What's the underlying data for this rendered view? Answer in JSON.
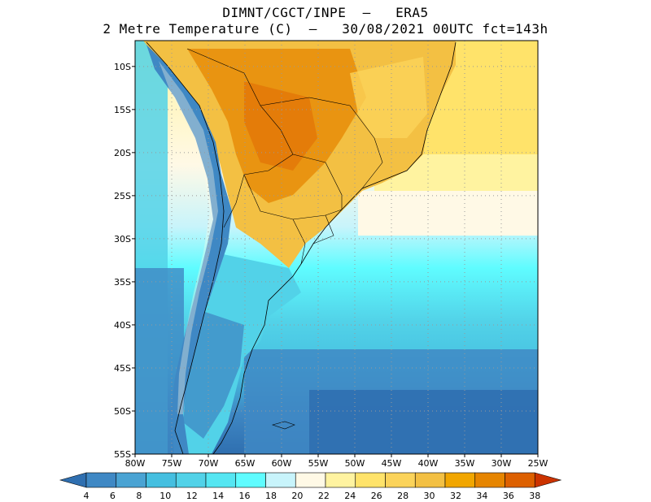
{
  "title": {
    "line1": "DIMNT/CGCT/INPE  –   ERA5",
    "line2": "2 Metre Temperature (C)  –   30/08/2021 00UTC fct=143h"
  },
  "map": {
    "lon_ticks": [
      "80W",
      "75W",
      "70W",
      "65W",
      "60W",
      "55W",
      "50W",
      "45W",
      "40W",
      "35W",
      "30W",
      "25W"
    ],
    "lat_ticks": [
      "10S",
      "15S",
      "20S",
      "25S",
      "30S",
      "35S",
      "40S",
      "45S",
      "50S",
      "55S"
    ],
    "lon_range": [
      -80,
      -25
    ],
    "lat_range": [
      -55,
      -7
    ],
    "gridlines": "dotted"
  },
  "colorbar": {
    "labels": [
      "4",
      "6",
      "8",
      "10",
      "12",
      "14",
      "16",
      "18",
      "20",
      "22",
      "24",
      "26",
      "28",
      "30",
      "32",
      "34",
      "36",
      "38"
    ],
    "colors": [
      "#2f6fb0",
      "#3f88c4",
      "#4aa3d3",
      "#45bfe0",
      "#52d2e8",
      "#55e6f2",
      "#5ffcff",
      "#c8f4fb",
      "#fff9e6",
      "#fff3a0",
      "#ffe36a",
      "#fbd35a",
      "#f3c043",
      "#f1a600",
      "#e68500",
      "#dd6000",
      "#cc3300"
    ]
  },
  "legend_colors": {
    "ocean_cold": "#2f6fb0",
    "ocean_mid": "#45bfe0",
    "warm_land": "#f3c043",
    "hot_land": "#e68500"
  }
}
